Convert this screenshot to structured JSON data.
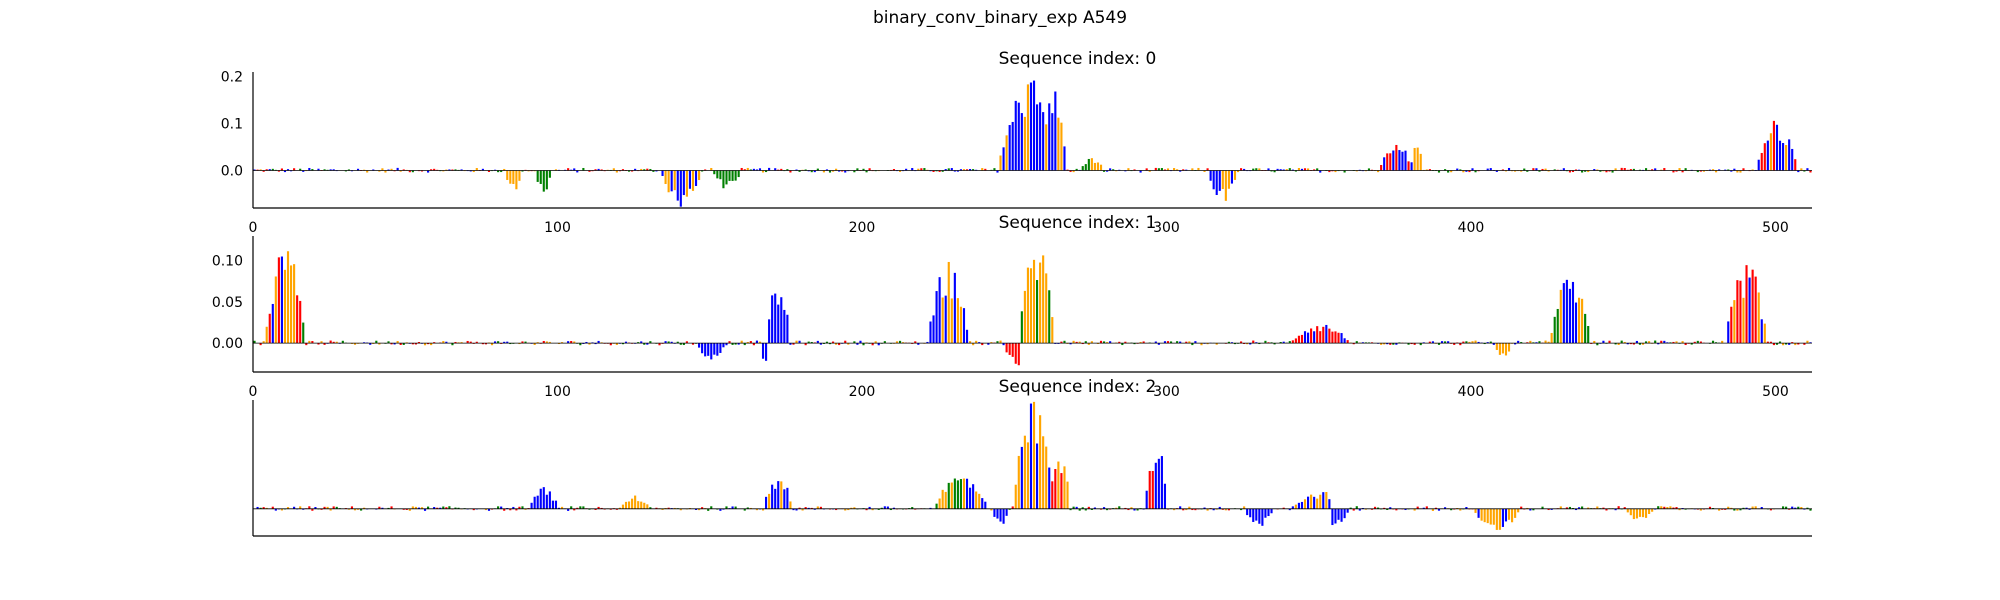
{
  "figure_title": "binary_conv_binary_exp A549",
  "colors": {
    "A": "#008000",
    "C": "#0000ff",
    "G": "#ffa500",
    "T": "#ff0000"
  },
  "chart_data": [
    {
      "type": "bar",
      "subtype": "sequence-logo",
      "title": "Sequence index: 0",
      "xlim": [
        0,
        512
      ],
      "ylim": [
        -0.08,
        0.21
      ],
      "xticks": [
        0,
        100,
        200,
        300,
        400,
        500
      ],
      "yticks": [
        0.0,
        0.1,
        0.2
      ],
      "ytick_labels": [
        "0.0",
        "0.1",
        "0.2"
      ],
      "peaks": [
        {
          "center": 255,
          "width": 22,
          "height": 0.2,
          "bases": "CGCCG"
        },
        {
          "center": 262,
          "width": 10,
          "height": 0.18,
          "bases": "GGC"
        },
        {
          "center": 275,
          "width": 8,
          "height": 0.03,
          "bases": "AG"
        },
        {
          "center": 375,
          "width": 12,
          "height": 0.06,
          "bases": "CTC"
        },
        {
          "center": 382,
          "width": 4,
          "height": 0.07,
          "bases": "G"
        },
        {
          "center": 500,
          "width": 14,
          "height": 0.11,
          "bases": "CGCT"
        },
        {
          "center": 140,
          "width": 14,
          "height": -0.08,
          "bases": "CG"
        },
        {
          "center": 155,
          "width": 10,
          "height": -0.04,
          "bases": "A"
        },
        {
          "center": 318,
          "width": 10,
          "height": -0.07,
          "bases": "CCG"
        },
        {
          "center": 85,
          "width": 6,
          "height": -0.05,
          "bases": "G"
        },
        {
          "center": 95,
          "width": 6,
          "height": -0.05,
          "bases": "A"
        },
        {
          "center": 495,
          "width": 2,
          "height": -0.03,
          "bases": "T"
        }
      ]
    },
    {
      "type": "bar",
      "subtype": "sequence-logo",
      "title": "Sequence index: 1",
      "xlim": [
        0,
        512
      ],
      "ylim": [
        -0.035,
        0.13
      ],
      "xticks": [
        0,
        100,
        200,
        300,
        400,
        500
      ],
      "yticks": [
        0.0,
        0.05,
        0.1
      ],
      "ytick_labels": [
        "0.00",
        "0.05",
        "0.10"
      ],
      "peaks": [
        {
          "center": 10,
          "width": 14,
          "height": 0.12,
          "bases": "CGAGT"
        },
        {
          "center": 172,
          "width": 8,
          "height": 0.08,
          "bases": "C"
        },
        {
          "center": 228,
          "width": 14,
          "height": 0.1,
          "bases": "CCG"
        },
        {
          "center": 257,
          "width": 12,
          "height": 0.13,
          "bases": "GAG"
        },
        {
          "center": 350,
          "width": 20,
          "height": 0.025,
          "bases": "TCT"
        },
        {
          "center": 432,
          "width": 14,
          "height": 0.08,
          "bases": "CGA"
        },
        {
          "center": 490,
          "width": 14,
          "height": 0.1,
          "bases": "GTCG"
        },
        {
          "center": 150,
          "width": 10,
          "height": -0.02,
          "bases": "C"
        },
        {
          "center": 168,
          "width": 4,
          "height": -0.03,
          "bases": "C"
        },
        {
          "center": 250,
          "width": 8,
          "height": -0.03,
          "bases": "T"
        },
        {
          "center": 410,
          "width": 6,
          "height": -0.02,
          "bases": "G"
        }
      ]
    },
    {
      "type": "bar",
      "subtype": "sequence-logo",
      "title": "Sequence index: 2",
      "xlim": [
        0,
        512
      ],
      "ylim": [
        -0.03,
        0.12
      ],
      "xticks": [],
      "yticks": [],
      "ytick_labels": [],
      "peaks": [
        {
          "center": 95,
          "width": 10,
          "height": 0.025,
          "bases": "C"
        },
        {
          "center": 125,
          "width": 10,
          "height": 0.015,
          "bases": "G"
        },
        {
          "center": 172,
          "width": 10,
          "height": 0.04,
          "bases": "GC"
        },
        {
          "center": 232,
          "width": 18,
          "height": 0.04,
          "bases": "CGA"
        },
        {
          "center": 256,
          "width": 14,
          "height": 0.12,
          "bases": "GGGC"
        },
        {
          "center": 264,
          "width": 8,
          "height": 0.07,
          "bases": "GT"
        },
        {
          "center": 296,
          "width": 8,
          "height": 0.08,
          "bases": "CT"
        },
        {
          "center": 350,
          "width": 20,
          "height": 0.02,
          "bases": "GC"
        },
        {
          "center": 245,
          "width": 6,
          "height": -0.02,
          "bases": "C"
        },
        {
          "center": 330,
          "width": 10,
          "height": -0.02,
          "bases": "C"
        },
        {
          "center": 355,
          "width": 10,
          "height": -0.02,
          "bases": "C"
        },
        {
          "center": 408,
          "width": 16,
          "height": -0.025,
          "bases": "GC"
        },
        {
          "center": 455,
          "width": 10,
          "height": -0.015,
          "bases": "G"
        }
      ]
    }
  ]
}
